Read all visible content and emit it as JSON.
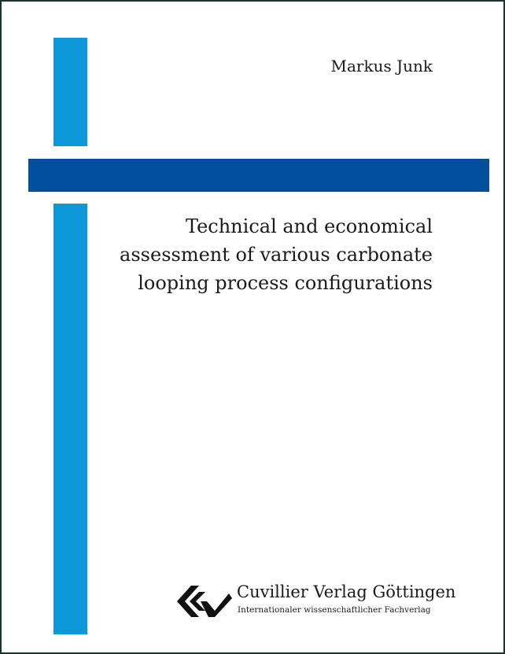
{
  "cover": {
    "author": "Markus Junk",
    "title_lines": [
      "Technical and economical",
      "assessment of various carbonate",
      "looping process configurations"
    ]
  },
  "publisher": {
    "name": "Cuvillier Verlag Göttingen",
    "subtitle": "Internationaler wissenschaftlicher Fachverlag",
    "logo_icon": "cuvillier-logo-icon"
  },
  "colors": {
    "light_blue": "#0d99d9",
    "dark_blue": "#004f9c",
    "frame": "#17352c"
  }
}
